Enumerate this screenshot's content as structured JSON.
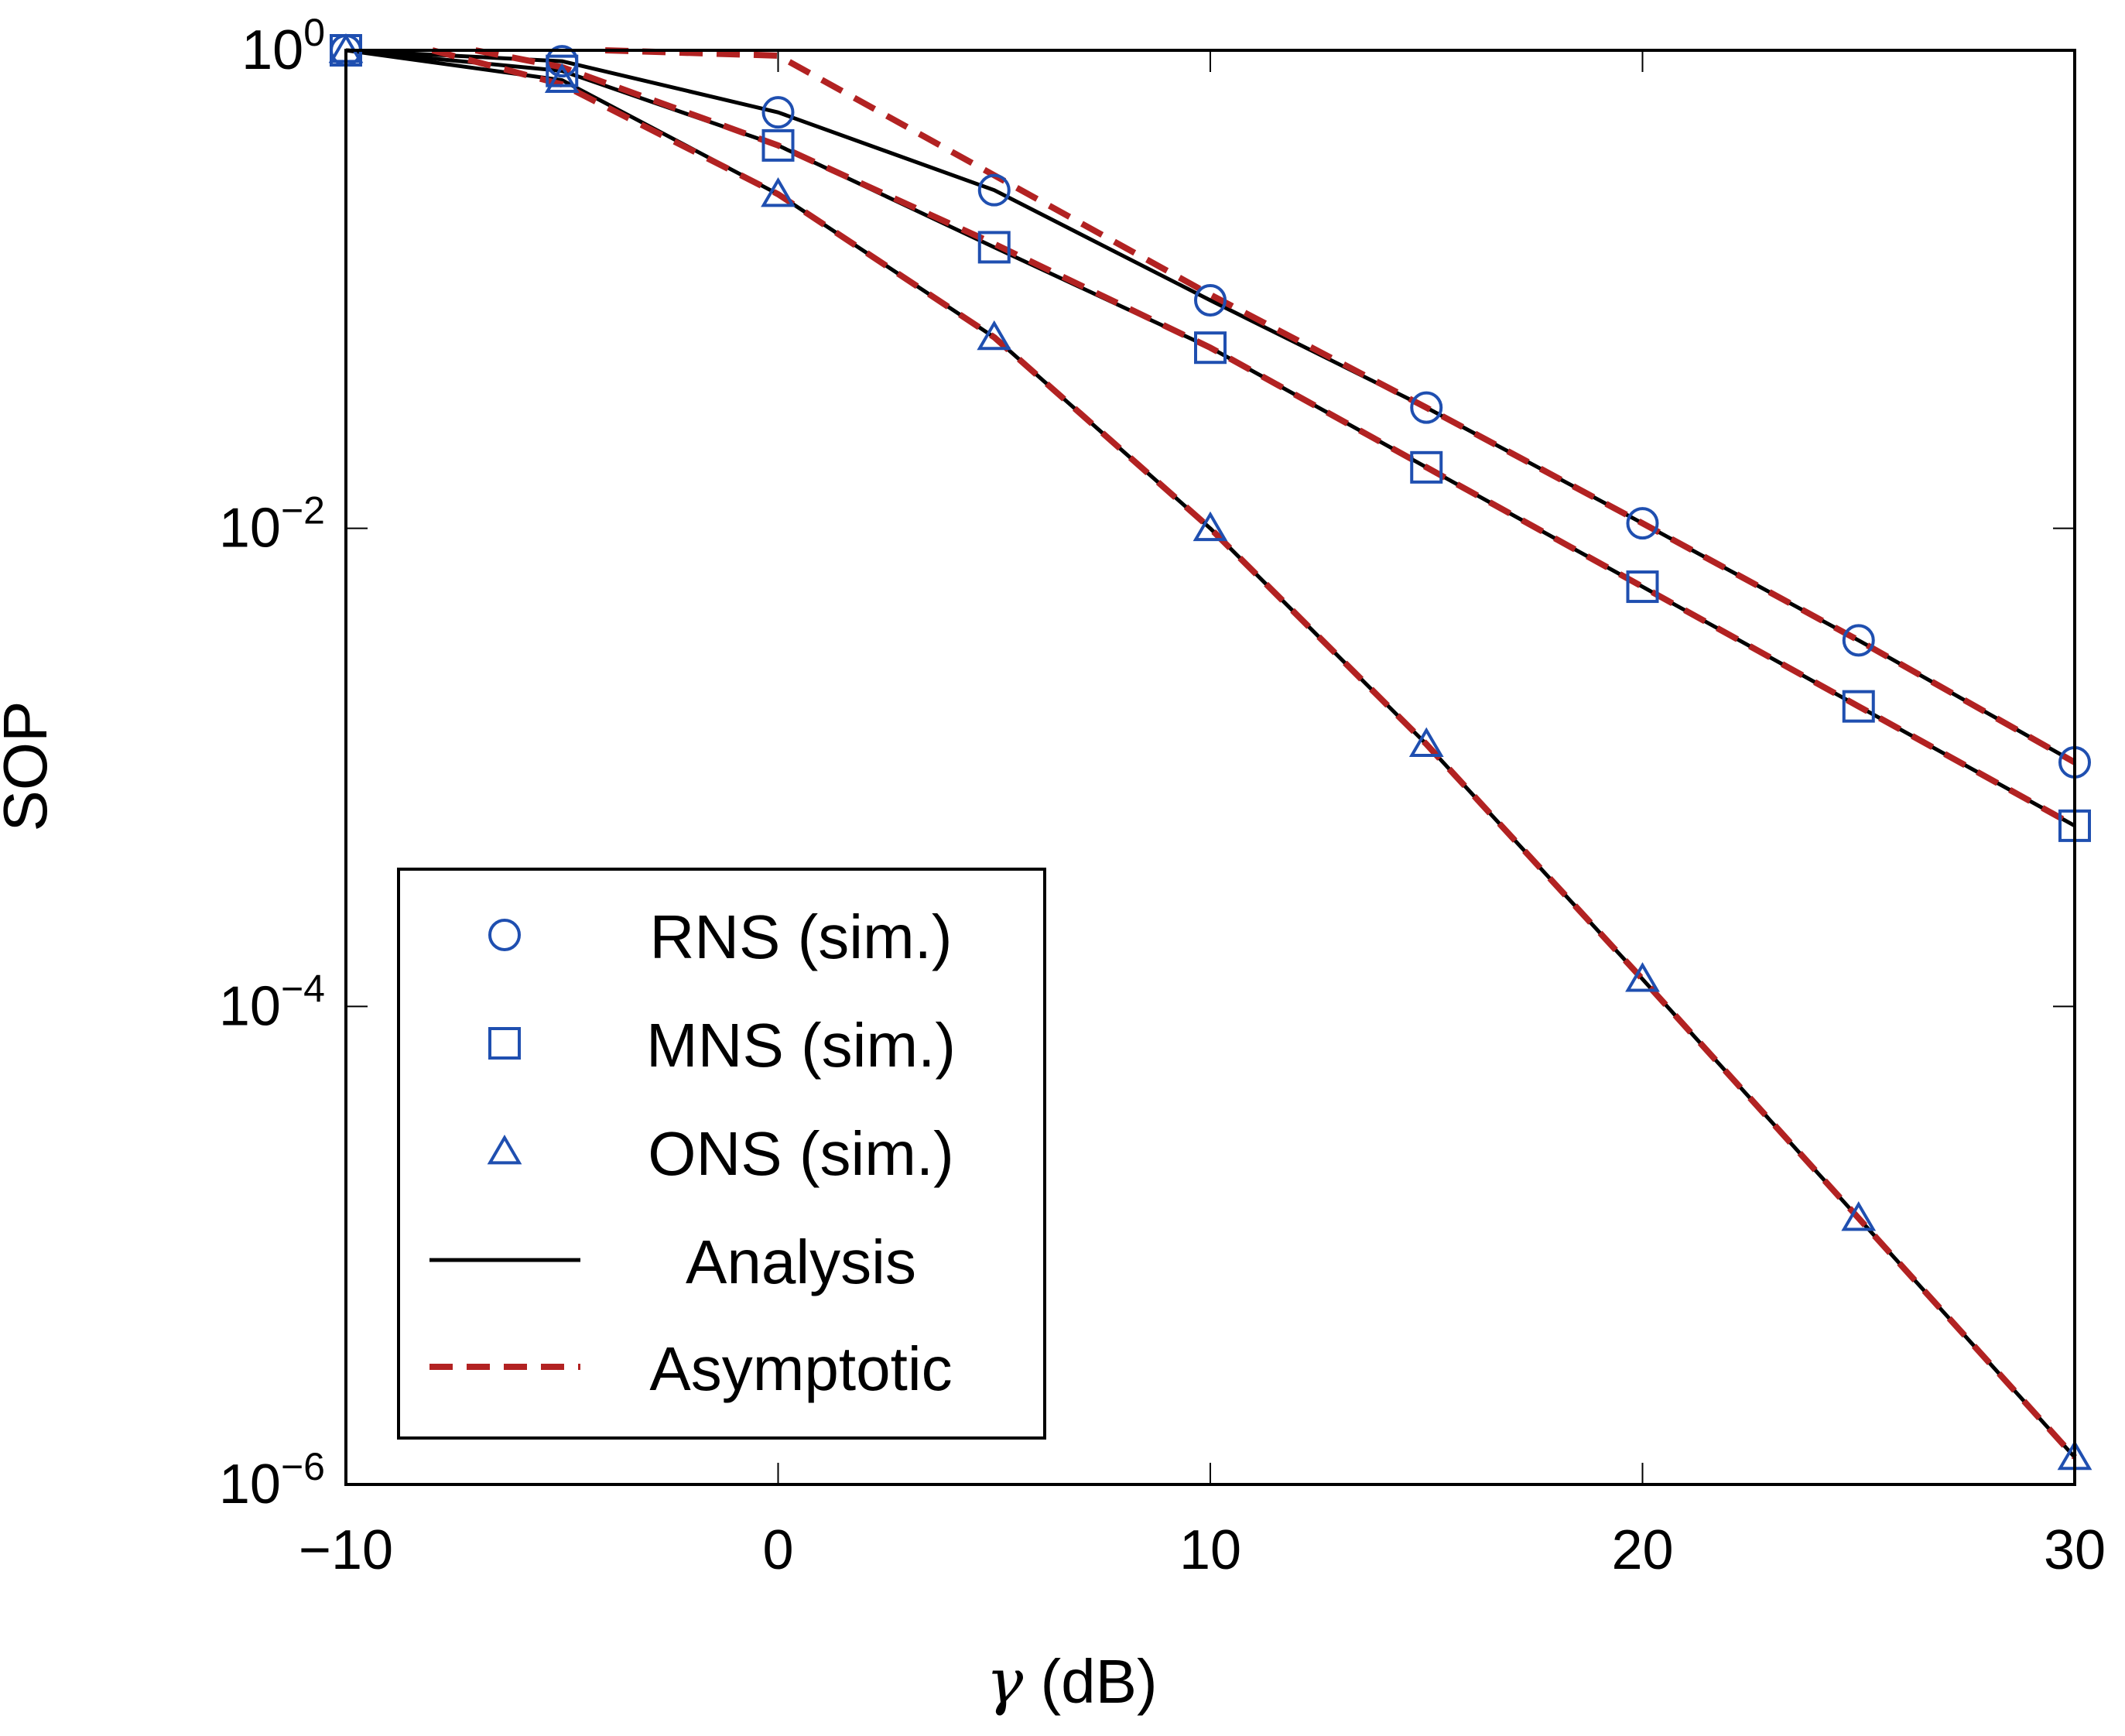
{
  "chart_data": {
    "type": "line",
    "yscale": "log",
    "xlabel_symbol": "γ",
    "xlabel_unit": " (dB)",
    "ylabel": "SOP",
    "xlim": [
      -10,
      30
    ],
    "ylim": [
      1e-06,
      1
    ],
    "x_ticks": [
      -10,
      0,
      10,
      20,
      30
    ],
    "x_tick_labels": [
      "−10",
      "0",
      "10",
      "20",
      "30"
    ],
    "y_ticks": [
      1,
      0.01,
      0.0001,
      1e-06
    ],
    "y_tick_labels": [
      {
        "base": "10",
        "exp": "0"
      },
      {
        "base": "10",
        "exp": "−2"
      },
      {
        "base": "10",
        "exp": "−4"
      },
      {
        "base": "10",
        "exp": "−6"
      }
    ],
    "grid": false,
    "legend_position": "lower-left",
    "x": [
      -10,
      -5,
      0,
      5,
      10,
      15,
      20,
      25,
      30
    ],
    "series": [
      {
        "name": "RNS (sim.)",
        "kind": "markers",
        "marker": "circle",
        "color": "#1f4fb0",
        "values": [
          1.0,
          0.9,
          0.55,
          0.26,
          0.09,
          0.032,
          0.0105,
          0.0034,
          0.00105
        ]
      },
      {
        "name": "MNS (sim.)",
        "kind": "markers",
        "marker": "square",
        "color": "#1f4fb0",
        "values": [
          1.0,
          0.82,
          0.4,
          0.15,
          0.057,
          0.018,
          0.0057,
          0.0018,
          0.00057
        ]
      },
      {
        "name": "ONS (sim.)",
        "kind": "markers",
        "marker": "triangle",
        "color": "#1f4fb0",
        "values": [
          1.0,
          0.75,
          0.25,
          0.063,
          0.01,
          0.00125,
          0.00013,
          1.3e-05,
          1.3e-06
        ]
      },
      {
        "name": "Analysis",
        "kind": "line",
        "dash": "solid",
        "color": "#000000",
        "curves": [
          [
            1.0,
            0.9,
            0.55,
            0.26,
            0.09,
            0.032,
            0.0105,
            0.0034,
            0.00105
          ],
          [
            1.0,
            0.82,
            0.4,
            0.15,
            0.057,
            0.018,
            0.0057,
            0.0018,
            0.00057
          ],
          [
            1.0,
            0.75,
            0.25,
            0.063,
            0.01,
            0.00125,
            0.00013,
            1.3e-05,
            1.3e-06
          ]
        ]
      },
      {
        "name": "Asymptotic",
        "kind": "line",
        "dash": "dashed",
        "color": "#b22222",
        "curves": [
          {
            "x": [
              -4,
              0,
              5,
              10,
              15,
              20,
              25,
              30
            ],
            "values": [
              1.0,
              0.95,
              0.3,
              0.095,
              0.032,
              0.0105,
              0.0034,
              0.00105
            ]
          },
          {
            "x": [
              -7,
              -5,
              0,
              5,
              10,
              15,
              20,
              25,
              30
            ],
            "values": [
              1.0,
              0.85,
              0.4,
              0.155,
              0.057,
              0.018,
              0.0057,
              0.0018,
              0.00057
            ]
          },
          {
            "x": [
              -8,
              -5,
              0,
              5,
              10,
              15,
              20,
              25,
              30
            ],
            "values": [
              1.0,
              0.72,
              0.25,
              0.063,
              0.01,
              0.00125,
              0.00013,
              1.3e-05,
              1.3e-06
            ]
          }
        ]
      }
    ]
  }
}
